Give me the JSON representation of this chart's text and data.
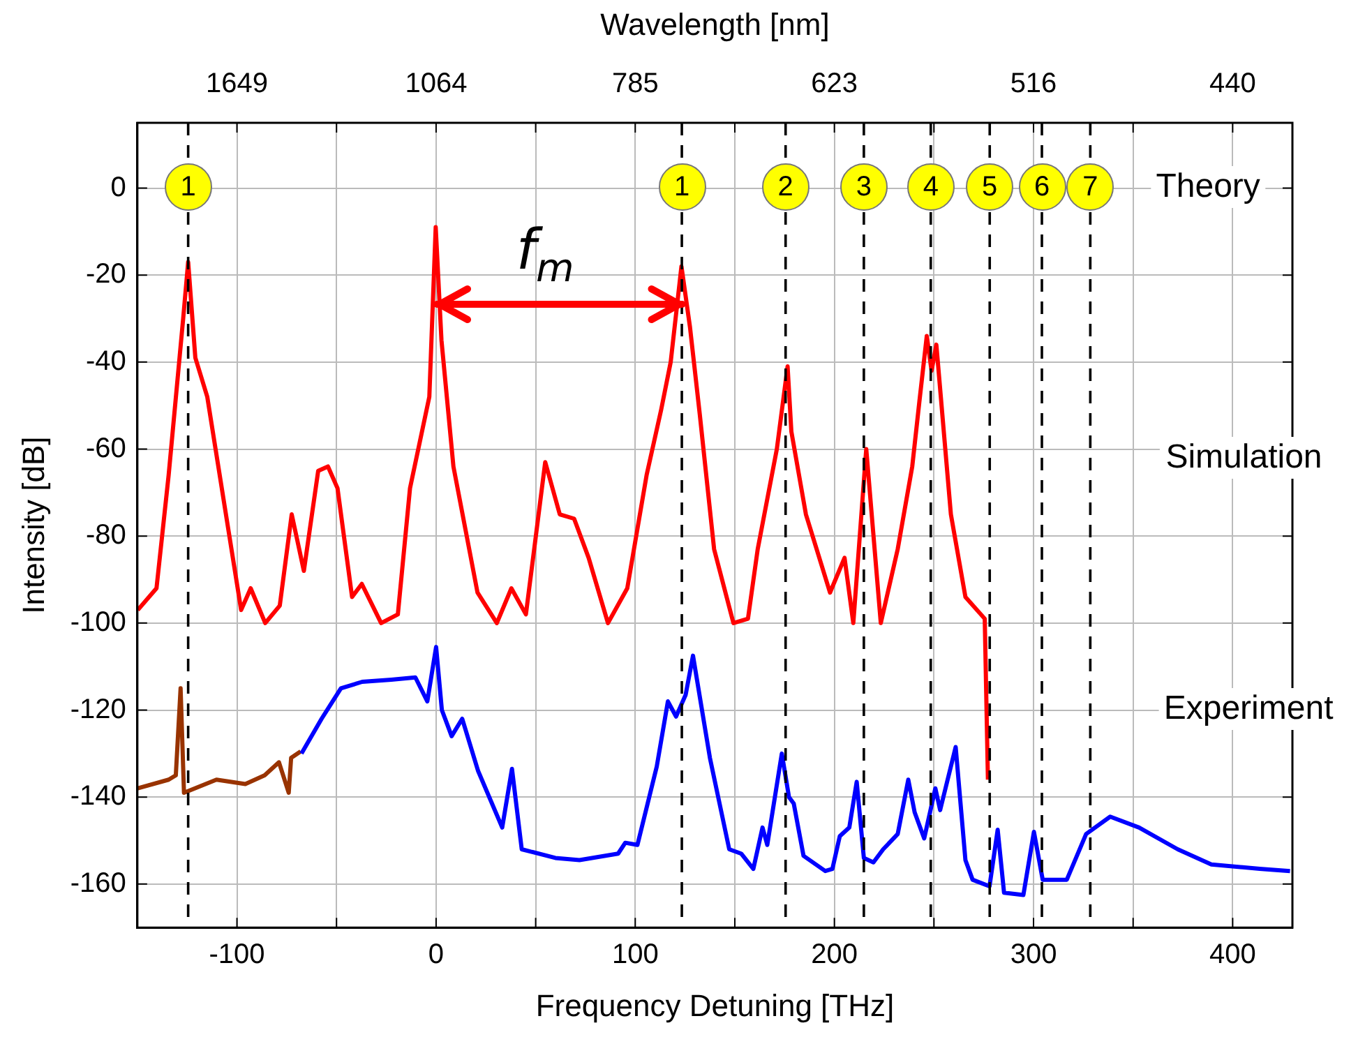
{
  "chart_data": {
    "type": "line",
    "xlabel": "Frequency Detuning [THz]",
    "ylabel": "Intensity [dB]",
    "x2label": "Wavelength [nm]",
    "xlim": [
      -150,
      430
    ],
    "ylim": [
      -170,
      15
    ],
    "xticks": [
      -100,
      {
        "value": -50,
        "label": null
      },
      0,
      {
        "value": 50,
        "label": null
      },
      100,
      {
        "value": 150,
        "label": null
      },
      200,
      {
        "value": 250,
        "label": null
      },
      300,
      {
        "value": 350,
        "label": null
      },
      400
    ],
    "yticks": [
      -160,
      -140,
      -120,
      -100,
      -80,
      -60,
      -40,
      -20,
      0
    ],
    "grid": true,
    "legend": false,
    "marker": "none",
    "line_style": "solid",
    "series": [
      {
        "color": "#ff0000",
        "x": [
          -149.8,
          -140.4,
          -134.3,
          -127,
          -124.5,
          -120.9,
          -114.9,
          -97.9,
          -93.1,
          -85.8,
          -78.5,
          -72.5,
          -66.4,
          -59.2,
          -54.3,
          -49.5,
          -42.2,
          -37.3,
          -27.6,
          -19.2,
          -13.1,
          -3.4,
          -0.2,
          2.7,
          8.7,
          20.8,
          30.5,
          37.8,
          45.1,
          54.8,
          62.1,
          69.3,
          76.6,
          86.3,
          96,
          105.7,
          113,
          117.8,
          123.2,
          127.5,
          132.4,
          139.6,
          149.3,
          156.6,
          161.5,
          171.1,
          176.5,
          178.4,
          185.7,
          197.8,
          205.1,
          209.5,
          216,
          223.3,
          231.8,
          239.1,
          242.7,
          246.4,
          248.8,
          251.2,
          258.5,
          265.8,
          275.5,
          277.1
        ],
        "values": [
          -97,
          -92,
          -66,
          -30,
          -17,
          -39,
          -48,
          -97,
          -92,
          -100,
          -96,
          -75,
          -88,
          -65,
          -64,
          -69,
          -94,
          -91,
          -100,
          -98,
          -69,
          -48,
          -9,
          -35,
          -64,
          -93,
          -100,
          -92,
          -98,
          -63,
          -75,
          -76,
          -85,
          -100,
          -92,
          -66,
          -51,
          -40,
          -18,
          -32,
          -52,
          -83,
          -100,
          -99,
          -83,
          -60,
          -41,
          -56,
          -75,
          -93,
          -85,
          -100,
          -60,
          -100,
          -83,
          -64,
          -49,
          -34,
          -42,
          -36,
          -75,
          -94,
          -99,
          -136
        ]
      },
      {
        "color": "#0000ff",
        "x": [
          -67.6,
          -57.5,
          -47.8,
          -37.1,
          -22.5,
          -10.4,
          -4.4,
          0,
          2.9,
          7.8,
          13.1,
          21.1,
          33.2,
          38.1,
          43,
          59.9,
          72,
          91.4,
          95,
          101.1,
          110.8,
          116.4,
          120.5,
          125.3,
          129,
          137.5,
          147.2,
          153.2,
          159.3,
          163.9,
          166.3,
          173.6,
          177.2,
          179.6,
          184.5,
          195.4,
          199,
          202.7,
          207.5,
          211.2,
          214.8,
          219.6,
          224.5,
          231.8,
          237.1,
          240.3,
          245.1,
          250.7,
          253.1,
          260.9,
          265.8,
          269.4,
          277.9,
          282,
          285.2,
          294.9,
          300.2,
          304.6,
          316.7,
          326.4,
          338.5,
          353,
          372.4,
          389.3,
          413.6,
          428.8
        ],
        "values": [
          -130,
          -122,
          -115,
          -113.5,
          -113,
          -112.5,
          -118,
          -105.5,
          -120,
          -126,
          -122,
          -134,
          -147,
          -133.5,
          -152,
          -154,
          -154.5,
          -153,
          -150.5,
          -151,
          -133,
          -118,
          -121.5,
          -116.5,
          -107.5,
          -131,
          -152,
          -153,
          -156.5,
          -147,
          -151,
          -130,
          -140,
          -141.5,
          -153.5,
          -157,
          -156.5,
          -149,
          -147,
          -136.5,
          -154,
          -155,
          -152,
          -148.5,
          -136,
          -143.5,
          -149.5,
          -138,
          -143,
          -128.5,
          -154.5,
          -159,
          -160.5,
          -147.5,
          -162,
          -162.5,
          -148,
          -159,
          -159,
          -148.5,
          -144.5,
          -147,
          -152,
          -155.5,
          -156.5,
          -157
        ]
      },
      {
        "color": "#993300",
        "x": [
          -149.8,
          -134.3,
          -130.7,
          -128.3,
          -126.6,
          -110.3,
          -95.8,
          -86.1,
          -78.9,
          -74,
          -72.8,
          -68
        ],
        "values": [
          -138,
          -136,
          -135,
          -115,
          -139,
          -136,
          -137,
          -135,
          -132,
          -139,
          -131,
          -129.5
        ]
      }
    ],
    "ref_lines": [
      {
        "axis": "x",
        "value": -124.5,
        "color": "#000000",
        "line_style": "dashed"
      },
      {
        "axis": "x",
        "value": 123.4,
        "color": "#000000",
        "line_style": "dashed"
      },
      {
        "axis": "x",
        "value": 175.5,
        "color": "#000000",
        "line_style": "dashed"
      },
      {
        "axis": "x",
        "value": 214.8,
        "color": "#000000",
        "line_style": "dashed"
      },
      {
        "axis": "x",
        "value": 248.4,
        "color": "#000000",
        "line_style": "dashed"
      },
      {
        "axis": "x",
        "value": 278,
        "color": "#000000",
        "line_style": "dashed"
      },
      {
        "axis": "x",
        "value": 304.2,
        "color": "#000000",
        "line_style": "dashed"
      },
      {
        "axis": "x",
        "value": 328.5,
        "color": "#000000",
        "line_style": "dashed"
      }
    ],
    "annotations": [
      "1",
      "1",
      "2",
      "3",
      "4",
      "5",
      "6",
      "7",
      "f$_{m}$",
      "Theory",
      "Simulation",
      "Experiment",
      "1649",
      "1064",
      "785",
      "623",
      "516",
      "440"
    ]
  }
}
